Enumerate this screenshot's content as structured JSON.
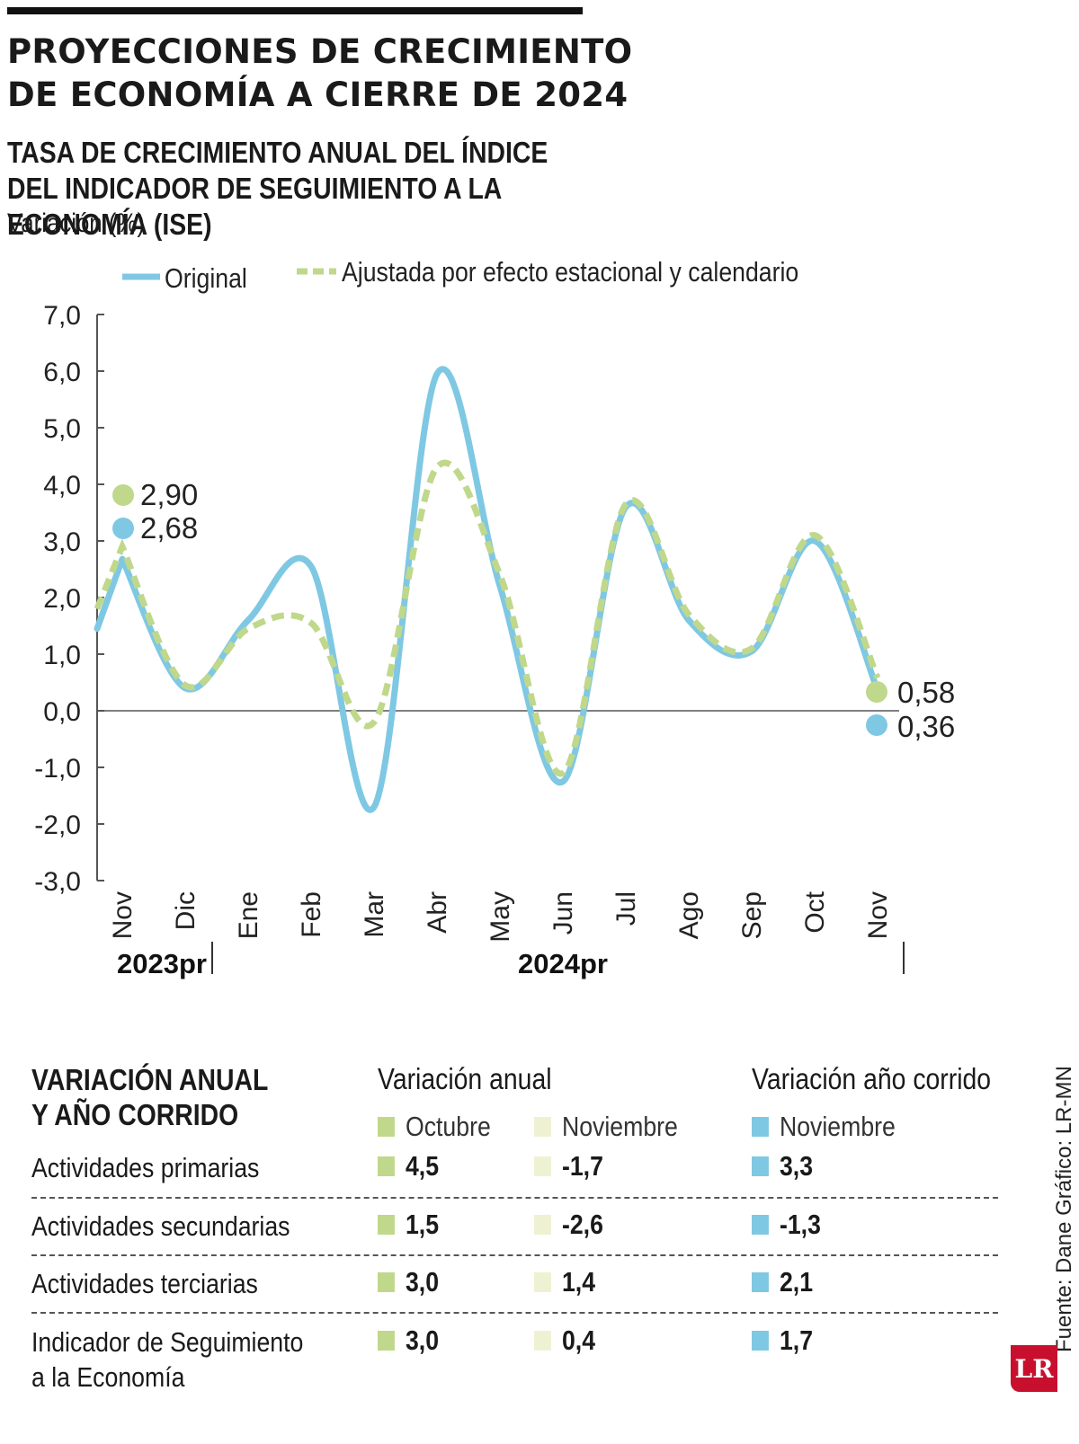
{
  "title": "PROYECCIONES DE CRECIMIENTO DE ECONOMÍA A CIERRE DE 2024",
  "subtitle": "TASA DE CRECIMIENTO ANUAL DEL ÍNDICE DEL INDICADOR DE SEGUIMIENTO A LA ECONOMÍA (ISE)",
  "unit": "Variación (%)",
  "chart_data": {
    "type": "line",
    "categories": [
      "Nov",
      "Dic",
      "Ene",
      "Feb",
      "Mar",
      "Abr",
      "May",
      "Jun",
      "Jul",
      "Ago",
      "Sep",
      "Oct",
      "Nov"
    ],
    "year_groups": [
      {
        "label": "2023pr",
        "from": 0,
        "to": 1
      },
      {
        "label": "2024pr",
        "from": 2,
        "to": 12
      }
    ],
    "series": [
      {
        "name": "Original",
        "color": "#7fc8e3",
        "style": "solid",
        "values": [
          2.68,
          0.4,
          1.6,
          2.55,
          -1.7,
          5.95,
          2.2,
          -1.25,
          3.6,
          1.6,
          1.05,
          3.0,
          0.36
        ]
      },
      {
        "name": "Ajustada por efecto estacional y calendario",
        "color": "#bfd88b",
        "style": "dashed",
        "values": [
          2.9,
          0.45,
          1.45,
          1.55,
          -0.2,
          4.3,
          2.4,
          -1.1,
          3.65,
          1.7,
          1.1,
          3.1,
          0.58
        ]
      }
    ],
    "start_callouts": [
      "2,90",
      "2,68"
    ],
    "end_callouts": [
      "0,58",
      "0,36"
    ],
    "ylim": [
      -3.0,
      7.0
    ],
    "yticks": [
      "7,0",
      "6,0",
      "5,0",
      "4,0",
      "3,0",
      "2,0",
      "1,0",
      "0,0",
      "-1,0",
      "-2,0",
      "-3,0"
    ],
    "legend_position": "top",
    "grid": false
  },
  "table": {
    "title": "VARIACIÓN ANUAL Y AÑO CORRIDO",
    "group_annual": "Variación anual",
    "group_ytd": "Variación año corrido",
    "sub_oct": "Octubre",
    "sub_nov": "Noviembre",
    "sub_ytd": "Noviembre",
    "rows": [
      {
        "label": "Actividades primarias",
        "oct": "4,5",
        "nov": "-1,7",
        "ytd": "3,3"
      },
      {
        "label": "Actividades secundarias",
        "oct": "1,5",
        "nov": "-2,6",
        "ytd": "-1,3"
      },
      {
        "label": "Actividades terciarias",
        "oct": "3,0",
        "nov": "1,4",
        "ytd": "2,1"
      },
      {
        "label": "Indicador de Seguimiento a la Economía",
        "oct": "3,0",
        "nov": "0,4",
        "ytd": "1,7"
      }
    ]
  },
  "source": "Fuente: Dane   Gráfico: LR-MN",
  "logo": "LR"
}
